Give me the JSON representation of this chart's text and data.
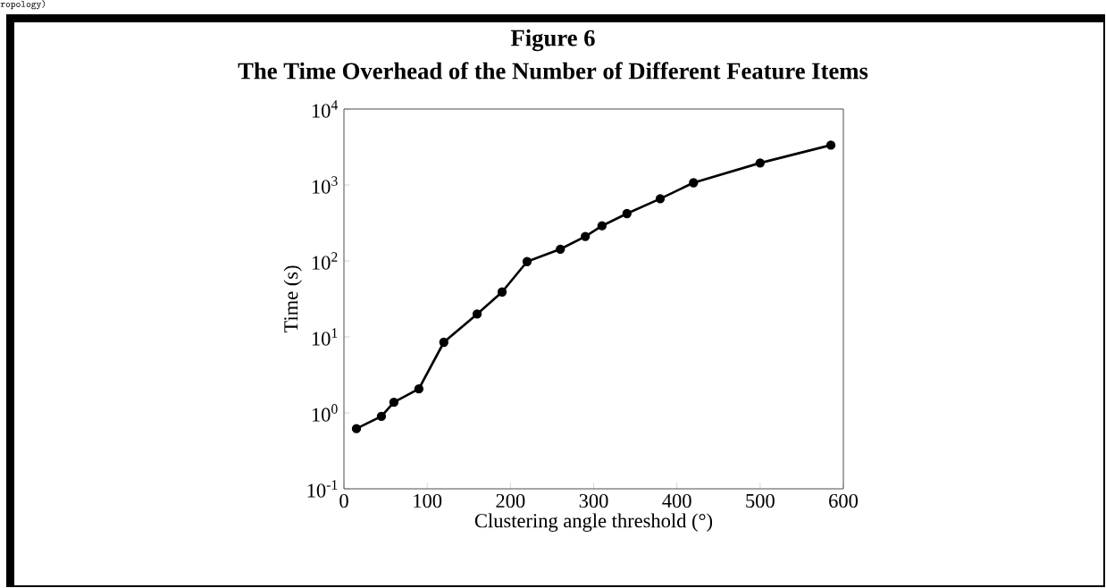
{
  "chart_data": {
    "type": "line",
    "title": "Figure 6",
    "subtitle": "The Time Overhead of the Number of Different Feature Items",
    "xlabel": "Clustering angle threshold (°)",
    "ylabel": "Time (s)",
    "annotations": [
      "ropology)"
    ],
    "x": [
      15,
      45,
      60,
      90,
      120,
      160,
      190,
      220,
      260,
      290,
      310,
      340,
      380,
      420,
      500,
      585
    ],
    "series": [
      {
        "color": "#000000",
        "values": [
          0.62,
          0.9,
          1.38,
          2.07,
          8.5,
          20,
          39,
          98,
          143,
          210,
          290,
          420,
          660,
          1070,
          1950,
          3350
        ]
      }
    ],
    "log": "y",
    "xlim": [
      0,
      600
    ],
    "xticks": [
      0,
      100,
      200,
      300,
      400,
      500,
      600
    ],
    "ylim": [
      0.1,
      10000
    ],
    "yticks": [
      {
        "value": 0.1,
        "label": "10$^{-1}$"
      },
      {
        "value": 1,
        "label": "10$^{0}$"
      },
      {
        "value": 10,
        "label": "10$^{1}$"
      },
      {
        "value": 100,
        "label": "10$^{2}$"
      },
      {
        "value": 1000,
        "label": "10$^{3}$"
      },
      {
        "value": 10000,
        "label": "10$^{4}$"
      }
    ],
    "grid": false,
    "marker": "circle",
    "line_style": "solid"
  }
}
